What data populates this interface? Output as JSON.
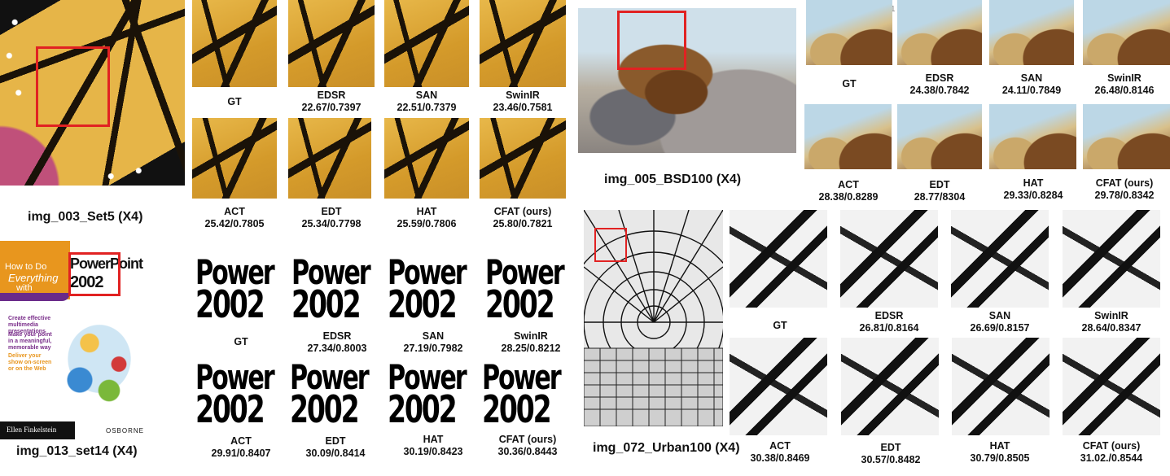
{
  "captions": {
    "set5": "img_003_Set5 (X4)",
    "bsd100": "img_005_BSD100 (X4)",
    "set14": "img_013_set14 (X4)",
    "urban100": "img_072_Urban100 (X4)"
  },
  "stray_mark": "1",
  "book_cover": {
    "how_to": "How to Do",
    "everything": "Everything",
    "with": "with",
    "power_point": "PowerPoint",
    "year": "2002",
    "bullets": [
      "Create effective multimedia presentations",
      "Make your point in a meaningful, memorable way",
      "Deliver your show on-screen or on the Web"
    ],
    "author": "Ellen Finkelstein",
    "publisher": "OSBORNE"
  },
  "power_text": {
    "line1": "Power",
    "line2": "2002"
  },
  "set5": [
    {
      "method": "GT",
      "score": ""
    },
    {
      "method": "EDSR",
      "score": "22.67/0.7397"
    },
    {
      "method": "SAN",
      "score": "22.51/0.7379"
    },
    {
      "method": "SwinIR",
      "score": "23.46/0.7581"
    },
    {
      "method": "ACT",
      "score": "25.42/0.7805"
    },
    {
      "method": "EDT",
      "score": "25.34/0.7798"
    },
    {
      "method": "HAT",
      "score": "25.59/0.7806"
    },
    {
      "method": "CFAT (ours)",
      "score": "25.80/0.7821"
    }
  ],
  "bsd100": [
    {
      "method": "GT",
      "score": ""
    },
    {
      "method": "EDSR",
      "score": "24.38/0.7842"
    },
    {
      "method": "SAN",
      "score": "24.11/0.7849"
    },
    {
      "method": "SwinIR",
      "score": "26.48/0.8146"
    },
    {
      "method": "ACT",
      "score": "28.38/0.8289"
    },
    {
      "method": "EDT",
      "score": "28.77/8304"
    },
    {
      "method": "HAT",
      "score": "29.33/0.8284"
    },
    {
      "method": "CFAT (ours)",
      "score": "29.78/0.8342"
    }
  ],
  "set14": [
    {
      "method": "GT",
      "score": ""
    },
    {
      "method": "EDSR",
      "score": "27.34/0.8003"
    },
    {
      "method": "SAN",
      "score": "27.19/0.7982"
    },
    {
      "method": "SwinIR",
      "score": "28.25/0.8212"
    },
    {
      "method": "ACT",
      "score": "29.91/0.8407"
    },
    {
      "method": "EDT",
      "score": "30.09/0.8414"
    },
    {
      "method": "HAT",
      "score": "30.19/0.8423"
    },
    {
      "method": "CFAT (ours)",
      "score": "30.36/0.8443"
    }
  ],
  "urban100": [
    {
      "method": "GT",
      "score": ""
    },
    {
      "method": "EDSR",
      "score": "26.81/0.8164"
    },
    {
      "method": "SAN",
      "score": "26.69/0.8157"
    },
    {
      "method": "SwinIR",
      "score": "28.64/0.8347"
    },
    {
      "method": "ACT",
      "score": "30.38/0.8469"
    },
    {
      "method": "EDT",
      "score": "30.57/0.8482"
    },
    {
      "method": "HAT",
      "score": "30.79/0.8505"
    },
    {
      "method": "CFAT (ours)",
      "score": "31.02./0.8544"
    }
  ]
}
